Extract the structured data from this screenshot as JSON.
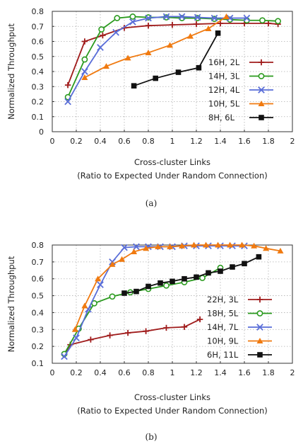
{
  "chart_data": [
    {
      "type": "line",
      "caption": "(a)",
      "xlabel": "Cross-cluster Links",
      "xlabel_sub": "(Ratio to Expected Under Random Connection)",
      "ylabel": "Normalized Throughput",
      "xlim": [
        0,
        2
      ],
      "ylim": [
        0,
        0.8
      ],
      "xticks": [
        "0",
        "0.2",
        "0.4",
        "0.6",
        "0.8",
        "1",
        "1.2",
        "1.4",
        "1.6",
        "1.8",
        "2"
      ],
      "yticks": [
        "0",
        "0.1",
        "0.2",
        "0.3",
        "0.4",
        "0.5",
        "0.6",
        "0.7",
        "0.8"
      ],
      "grid": true,
      "legend_position": "right",
      "series": [
        {
          "name": "16H, 2L",
          "color": "#a01c1c",
          "marker": "plus",
          "x": [
            0.13,
            0.27,
            0.42,
            0.6,
            0.8,
            1.0,
            1.2,
            1.4,
            1.6,
            1.8,
            1.88
          ],
          "y": [
            0.31,
            0.6,
            0.64,
            0.69,
            0.705,
            0.71,
            0.715,
            0.72,
            0.72,
            0.72,
            0.715
          ]
        },
        {
          "name": "14H, 3L",
          "color": "#2a9a1e",
          "marker": "circle",
          "x": [
            0.13,
            0.27,
            0.41,
            0.54,
            0.67,
            0.8,
            0.95,
            1.08,
            1.21,
            1.35,
            1.48,
            1.62,
            1.75,
            1.88
          ],
          "y": [
            0.23,
            0.48,
            0.68,
            0.755,
            0.765,
            0.76,
            0.76,
            0.755,
            0.755,
            0.75,
            0.745,
            0.74,
            0.74,
            0.735
          ]
        },
        {
          "name": "12H, 4L",
          "color": "#5a6ed8",
          "marker": "x",
          "x": [
            0.13,
            0.27,
            0.4,
            0.53,
            0.67,
            0.8,
            0.95,
            1.08,
            1.21,
            1.35,
            1.48,
            1.62
          ],
          "y": [
            0.2,
            0.4,
            0.56,
            0.66,
            0.73,
            0.755,
            0.765,
            0.765,
            0.76,
            0.755,
            0.755,
            0.755
          ]
        },
        {
          "name": "10H, 5L",
          "color": "#f07a10",
          "marker": "triangle",
          "x": [
            0.27,
            0.45,
            0.63,
            0.8,
            0.98,
            1.15,
            1.3,
            1.45
          ],
          "y": [
            0.36,
            0.435,
            0.49,
            0.525,
            0.575,
            0.635,
            0.685,
            0.765
          ]
        },
        {
          "name": "8H, 6L",
          "color": "#111111",
          "marker": "square",
          "x": [
            0.68,
            0.86,
            1.05,
            1.22,
            1.38
          ],
          "y": [
            0.305,
            0.355,
            0.395,
            0.425,
            0.655
          ]
        }
      ]
    },
    {
      "type": "line",
      "caption": "(b)",
      "xlabel": "Cross-cluster Links",
      "xlabel_sub": "(Ratio to Expected Under Random Connection)",
      "ylabel": "Normalized Throughput",
      "xlim": [
        0,
        2
      ],
      "ylim": [
        0.1,
        0.8
      ],
      "xticks": [
        "0",
        "0.2",
        "0.4",
        "0.6",
        "0.8",
        "1",
        "1.2",
        "1.4",
        "1.6",
        "1.8",
        "2"
      ],
      "yticks": [
        "0.1",
        "0.2",
        "0.3",
        "0.4",
        "0.5",
        "0.6",
        "0.7",
        "0.8"
      ],
      "grid": true,
      "legend_position": "right",
      "series": [
        {
          "name": "22H, 3L",
          "color": "#a01c1c",
          "marker": "plus",
          "x": [
            0.1,
            0.15,
            0.32,
            0.48,
            0.63,
            0.78,
            0.95,
            1.1,
            1.23
          ],
          "y": [
            0.15,
            0.21,
            0.24,
            0.265,
            0.28,
            0.29,
            0.31,
            0.315,
            0.36
          ]
        },
        {
          "name": "18H, 5L",
          "color": "#2a9a1e",
          "marker": "circle",
          "x": [
            0.1,
            0.22,
            0.35,
            0.5,
            0.65,
            0.8,
            0.95,
            1.1,
            1.25,
            1.4
          ],
          "y": [
            0.155,
            0.305,
            0.455,
            0.495,
            0.52,
            0.54,
            0.56,
            0.58,
            0.605,
            0.665
          ]
        },
        {
          "name": "14H, 7L",
          "color": "#5a6ed8",
          "marker": "x",
          "x": [
            0.1,
            0.2,
            0.3,
            0.4,
            0.5,
            0.6,
            0.7,
            0.8,
            0.9,
            1.0,
            1.1,
            1.2,
            1.3,
            1.4,
            1.5,
            1.6
          ],
          "y": [
            0.14,
            0.25,
            0.42,
            0.565,
            0.7,
            0.785,
            0.79,
            0.79,
            0.79,
            0.79,
            0.795,
            0.795,
            0.795,
            0.795,
            0.795,
            0.795
          ]
        },
        {
          "name": "10H, 9L",
          "color": "#f07a10",
          "marker": "triangle",
          "x": [
            0.19,
            0.27,
            0.38,
            0.5,
            0.58,
            0.68,
            0.78,
            0.88,
            0.98,
            1.08,
            1.18,
            1.28,
            1.38,
            1.48,
            1.58,
            1.68,
            1.78,
            1.9
          ],
          "y": [
            0.3,
            0.44,
            0.6,
            0.685,
            0.715,
            0.76,
            0.78,
            0.79,
            0.79,
            0.795,
            0.8,
            0.8,
            0.8,
            0.8,
            0.8,
            0.795,
            0.78,
            0.765
          ]
        },
        {
          "name": "6H, 11L",
          "color": "#111111",
          "marker": "square",
          "x": [
            0.6,
            0.7,
            0.8,
            0.9,
            1.0,
            1.1,
            1.2,
            1.3,
            1.4,
            1.5,
            1.6,
            1.72
          ],
          "y": [
            0.515,
            0.525,
            0.555,
            0.575,
            0.585,
            0.6,
            0.61,
            0.635,
            0.645,
            0.67,
            0.69,
            0.73
          ]
        }
      ]
    }
  ]
}
